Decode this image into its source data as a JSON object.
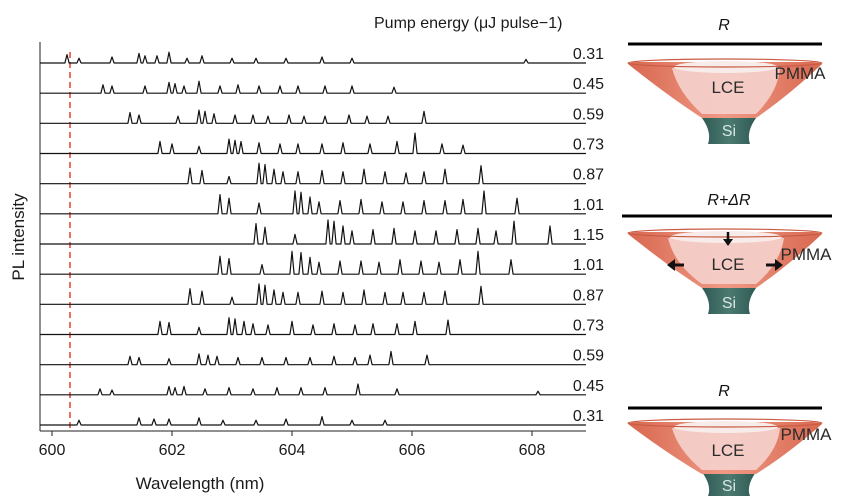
{
  "chart_data": {
    "type": "line",
    "title": "",
    "xlabel": "Wavelength (nm)",
    "ylabel": "PL intensity",
    "xlim": [
      599.8,
      608.9
    ],
    "x_ticks": [
      "600",
      "602",
      "604",
      "606",
      "608"
    ],
    "x_tick_values": [
      600,
      602,
      604,
      606,
      608
    ],
    "legend_title": "Pump energy (μJ pulse−1)",
    "reference_line": {
      "x": 600.3,
      "color": "#e8412c",
      "style": "dashed"
    },
    "trace_color": "#111111",
    "series": [
      {
        "energy": "0.31",
        "peaks": [
          [
            600.25,
            0.35
          ],
          [
            600.45,
            0.2
          ],
          [
            601.0,
            0.25
          ],
          [
            601.45,
            0.4
          ],
          [
            601.55,
            0.3
          ],
          [
            601.75,
            0.3
          ],
          [
            601.95,
            0.45
          ],
          [
            602.25,
            0.2
          ],
          [
            602.5,
            0.3
          ],
          [
            603.0,
            0.2
          ],
          [
            603.4,
            0.2
          ],
          [
            603.9,
            0.2
          ],
          [
            604.5,
            0.25
          ],
          [
            605.0,
            0.2
          ],
          [
            607.9,
            0.15
          ]
        ]
      },
      {
        "energy": "0.45",
        "peaks": [
          [
            600.85,
            0.35
          ],
          [
            601.0,
            0.3
          ],
          [
            601.55,
            0.3
          ],
          [
            601.95,
            0.45
          ],
          [
            602.05,
            0.4
          ],
          [
            602.2,
            0.3
          ],
          [
            602.45,
            0.5
          ],
          [
            602.8,
            0.3
          ],
          [
            603.1,
            0.35
          ],
          [
            603.45,
            0.3
          ],
          [
            603.8,
            0.3
          ],
          [
            604.1,
            0.3
          ],
          [
            604.55,
            0.3
          ],
          [
            605.0,
            0.3
          ],
          [
            605.7,
            0.25
          ]
        ]
      },
      {
        "energy": "0.59",
        "peaks": [
          [
            601.3,
            0.45
          ],
          [
            601.45,
            0.35
          ],
          [
            602.1,
            0.3
          ],
          [
            602.45,
            0.55
          ],
          [
            602.55,
            0.5
          ],
          [
            602.7,
            0.4
          ],
          [
            603.05,
            0.35
          ],
          [
            603.35,
            0.35
          ],
          [
            603.6,
            0.3
          ],
          [
            603.95,
            0.35
          ],
          [
            604.2,
            0.3
          ],
          [
            604.55,
            0.3
          ],
          [
            604.95,
            0.35
          ],
          [
            605.25,
            0.3
          ],
          [
            605.6,
            0.3
          ],
          [
            606.2,
            0.5
          ]
        ]
      },
      {
        "energy": "0.73",
        "peaks": [
          [
            601.8,
            0.5
          ],
          [
            602.0,
            0.4
          ],
          [
            602.45,
            0.3
          ],
          [
            602.95,
            0.6
          ],
          [
            603.05,
            0.55
          ],
          [
            603.15,
            0.5
          ],
          [
            603.45,
            0.45
          ],
          [
            603.8,
            0.4
          ],
          [
            604.1,
            0.4
          ],
          [
            604.5,
            0.4
          ],
          [
            604.85,
            0.45
          ],
          [
            605.3,
            0.4
          ],
          [
            605.75,
            0.5
          ],
          [
            606.05,
            0.85
          ],
          [
            606.5,
            0.4
          ],
          [
            606.85,
            0.35
          ]
        ]
      },
      {
        "energy": "0.87",
        "peaks": [
          [
            602.3,
            0.65
          ],
          [
            602.5,
            0.55
          ],
          [
            602.95,
            0.3
          ],
          [
            603.45,
            0.85
          ],
          [
            603.55,
            0.8
          ],
          [
            603.7,
            0.6
          ],
          [
            603.85,
            0.5
          ],
          [
            604.1,
            0.5
          ],
          [
            604.5,
            0.55
          ],
          [
            604.85,
            0.5
          ],
          [
            605.2,
            0.6
          ],
          [
            605.55,
            0.5
          ],
          [
            605.9,
            0.45
          ],
          [
            606.2,
            0.5
          ],
          [
            606.55,
            0.6
          ],
          [
            607.15,
            0.75
          ]
        ]
      },
      {
        "energy": "1.01",
        "peaks": [
          [
            602.8,
            0.8
          ],
          [
            602.95,
            0.65
          ],
          [
            603.45,
            0.45
          ],
          [
            604.05,
            0.95
          ],
          [
            604.15,
            0.9
          ],
          [
            604.3,
            0.7
          ],
          [
            604.45,
            0.5
          ],
          [
            604.8,
            0.55
          ],
          [
            605.15,
            0.6
          ],
          [
            605.5,
            0.5
          ],
          [
            605.85,
            0.5
          ],
          [
            606.2,
            0.55
          ],
          [
            606.55,
            0.55
          ],
          [
            606.85,
            0.6
          ],
          [
            607.2,
            0.95
          ],
          [
            607.75,
            0.65
          ]
        ]
      },
      {
        "energy": "1.15",
        "peaks": [
          [
            603.4,
            0.85
          ],
          [
            603.55,
            0.7
          ],
          [
            604.05,
            0.4
          ],
          [
            604.6,
            1.0
          ],
          [
            604.7,
            0.95
          ],
          [
            604.85,
            0.75
          ],
          [
            605.0,
            0.55
          ],
          [
            605.35,
            0.6
          ],
          [
            605.7,
            0.65
          ],
          [
            606.05,
            0.55
          ],
          [
            606.4,
            0.55
          ],
          [
            606.75,
            0.6
          ],
          [
            607.1,
            0.65
          ],
          [
            607.4,
            0.55
          ],
          [
            607.7,
            0.95
          ],
          [
            608.3,
            0.75
          ]
        ]
      },
      {
        "energy": "1.01",
        "peaks": [
          [
            602.8,
            0.75
          ],
          [
            602.95,
            0.65
          ],
          [
            603.5,
            0.4
          ],
          [
            604.0,
            0.95
          ],
          [
            604.15,
            0.9
          ],
          [
            604.3,
            0.7
          ],
          [
            604.45,
            0.5
          ],
          [
            604.8,
            0.55
          ],
          [
            605.15,
            0.55
          ],
          [
            605.45,
            0.5
          ],
          [
            605.8,
            0.6
          ],
          [
            606.15,
            0.55
          ],
          [
            606.45,
            0.5
          ],
          [
            606.8,
            0.6
          ],
          [
            607.1,
            0.95
          ],
          [
            607.65,
            0.6
          ]
        ]
      },
      {
        "energy": "0.87",
        "peaks": [
          [
            602.3,
            0.65
          ],
          [
            602.5,
            0.55
          ],
          [
            603.0,
            0.3
          ],
          [
            603.45,
            0.85
          ],
          [
            603.55,
            0.8
          ],
          [
            603.7,
            0.6
          ],
          [
            603.85,
            0.5
          ],
          [
            604.1,
            0.5
          ],
          [
            604.5,
            0.55
          ],
          [
            604.85,
            0.5
          ],
          [
            605.2,
            0.6
          ],
          [
            605.55,
            0.5
          ],
          [
            605.85,
            0.5
          ],
          [
            606.2,
            0.5
          ],
          [
            606.55,
            0.55
          ],
          [
            607.15,
            0.75
          ]
        ]
      },
      {
        "energy": "0.73",
        "peaks": [
          [
            601.8,
            0.55
          ],
          [
            601.95,
            0.5
          ],
          [
            602.45,
            0.3
          ],
          [
            602.95,
            0.7
          ],
          [
            603.05,
            0.65
          ],
          [
            603.2,
            0.55
          ],
          [
            603.35,
            0.45
          ],
          [
            603.6,
            0.4
          ],
          [
            604.0,
            0.55
          ],
          [
            604.35,
            0.4
          ],
          [
            604.7,
            0.45
          ],
          [
            605.05,
            0.4
          ],
          [
            605.35,
            0.45
          ],
          [
            605.75,
            0.45
          ],
          [
            606.05,
            0.55
          ],
          [
            606.6,
            0.6
          ]
        ]
      },
      {
        "energy": "0.59",
        "peaks": [
          [
            601.3,
            0.35
          ],
          [
            601.45,
            0.3
          ],
          [
            601.95,
            0.25
          ],
          [
            602.45,
            0.45
          ],
          [
            602.6,
            0.4
          ],
          [
            602.75,
            0.35
          ],
          [
            603.1,
            0.3
          ],
          [
            603.5,
            0.3
          ],
          [
            603.9,
            0.3
          ],
          [
            604.3,
            0.3
          ],
          [
            604.7,
            0.35
          ],
          [
            605.05,
            0.3
          ],
          [
            605.3,
            0.4
          ],
          [
            605.65,
            0.55
          ],
          [
            606.25,
            0.4
          ]
        ]
      },
      {
        "energy": "0.45",
        "peaks": [
          [
            600.8,
            0.25
          ],
          [
            601.0,
            0.2
          ],
          [
            601.95,
            0.35
          ],
          [
            602.05,
            0.3
          ],
          [
            602.2,
            0.35
          ],
          [
            602.55,
            0.25
          ],
          [
            602.95,
            0.3
          ],
          [
            603.35,
            0.25
          ],
          [
            603.75,
            0.3
          ],
          [
            604.15,
            0.3
          ],
          [
            604.55,
            0.3
          ],
          [
            605.1,
            0.45
          ],
          [
            605.75,
            0.25
          ],
          [
            608.1,
            0.15
          ]
        ]
      },
      {
        "energy": "0.31",
        "peaks": [
          [
            600.45,
            0.2
          ],
          [
            601.45,
            0.3
          ],
          [
            601.7,
            0.25
          ],
          [
            601.95,
            0.25
          ],
          [
            602.45,
            0.3
          ],
          [
            602.85,
            0.2
          ],
          [
            603.4,
            0.2
          ],
          [
            603.9,
            0.25
          ],
          [
            604.5,
            0.35
          ],
          [
            605.0,
            0.2
          ],
          [
            605.55,
            0.2
          ]
        ]
      }
    ]
  },
  "cavities": [
    {
      "ring_label": "R",
      "ring_italic_label": "",
      "changed": false,
      "arrows": false
    },
    {
      "ring_label": "R+",
      "ring_italic_label": "ΔR",
      "changed": true,
      "arrows": true
    },
    {
      "ring_label": "R",
      "ring_italic_label": "",
      "changed": false,
      "arrows": false
    }
  ],
  "layers": {
    "top": "PMMA",
    "middle": "LCE",
    "bottom": "Si"
  },
  "colors": {
    "pmma_shell": "#e9806a",
    "pmma_rim": "#d96a52",
    "lce_core": "#f2c5be",
    "lce_top": "#f5e6e2",
    "si_pillar": "#3f6b63",
    "ring_bar": "#000000",
    "red_line": "#e8412c"
  }
}
